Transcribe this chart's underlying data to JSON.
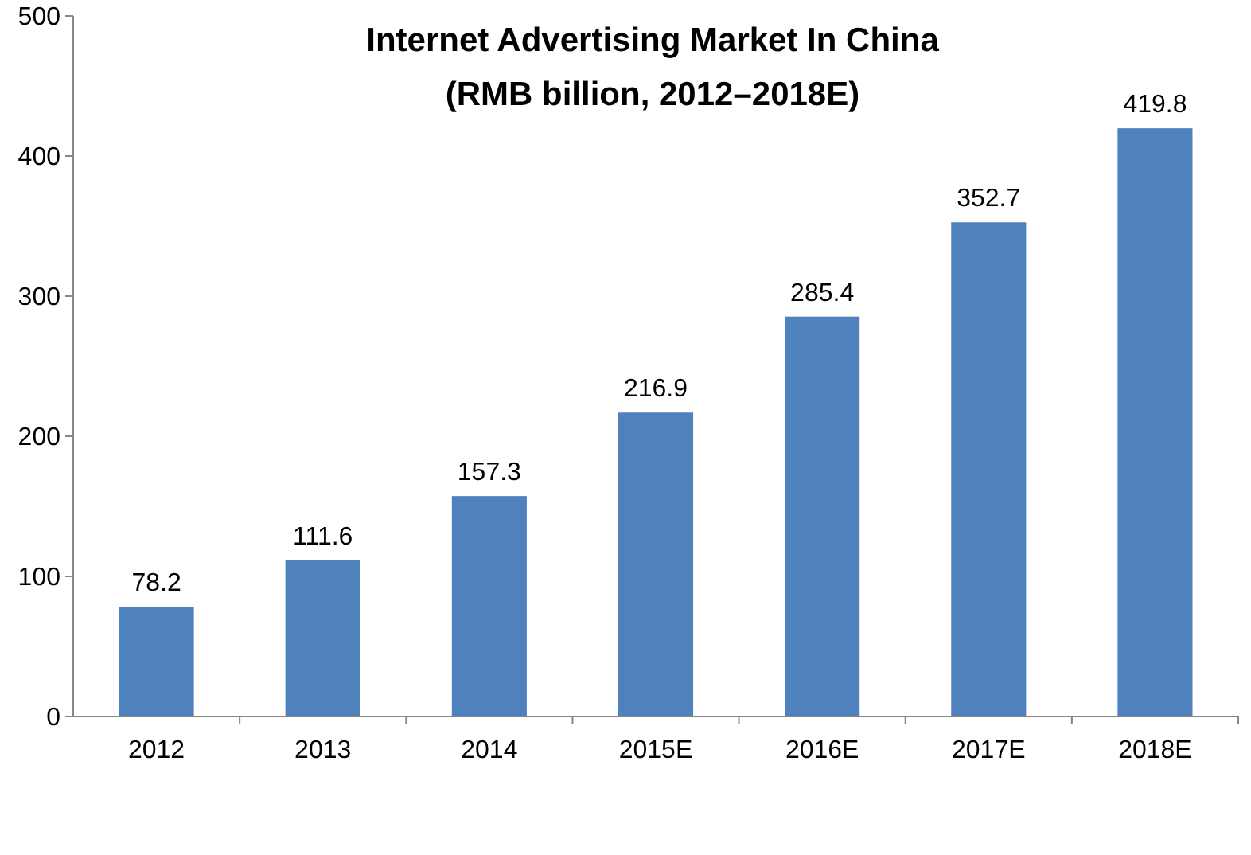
{
  "chart_data": {
    "type": "bar",
    "title": "Internet Advertising Market In China\n(RMB billion, 2012–2018E)",
    "categories": [
      "2012",
      "2013",
      "2014",
      "2015E",
      "2016E",
      "2017E",
      "2018E"
    ],
    "values": [
      78.2,
      111.6,
      157.3,
      216.9,
      285.4,
      352.7,
      419.8
    ],
    "color": "#4f81bd",
    "ylim": [
      0,
      500
    ],
    "yticks": [
      0,
      100,
      200,
      300,
      400,
      500
    ],
    "data_labels": true
  }
}
